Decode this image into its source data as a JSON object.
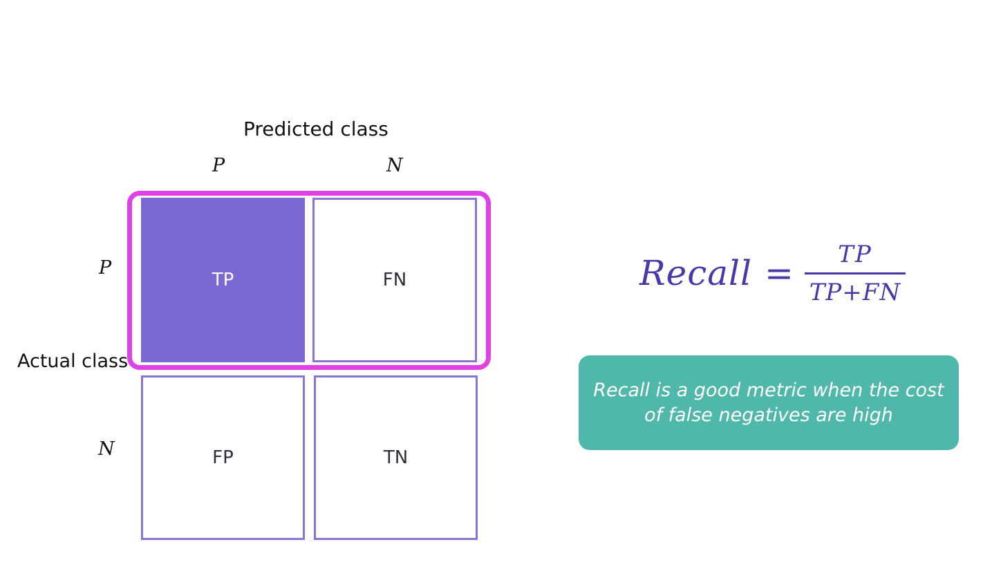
{
  "matrix": {
    "predicted_title": "Predicted class",
    "actual_title": "Actual class",
    "col_labels": [
      "P",
      "N"
    ],
    "row_labels": [
      "P",
      "N"
    ],
    "cells": {
      "tp": "TP",
      "fn": "FN",
      "fp": "FP",
      "tn": "TN"
    },
    "highlighted_row": "P",
    "filled_cell": "TP"
  },
  "formula": {
    "lhs": "Recall",
    "equals": "=",
    "numerator": "TP",
    "denominator": "TP+FN"
  },
  "note": {
    "text": "Recall is a good metric when the cost of false negatives are high"
  },
  "colors": {
    "cell_border": "#8b72d9",
    "filled_cell": "#7b68d2",
    "highlight": "#e040e6",
    "formula": "#4a37a8",
    "note_bg": "#4fb8aa"
  }
}
